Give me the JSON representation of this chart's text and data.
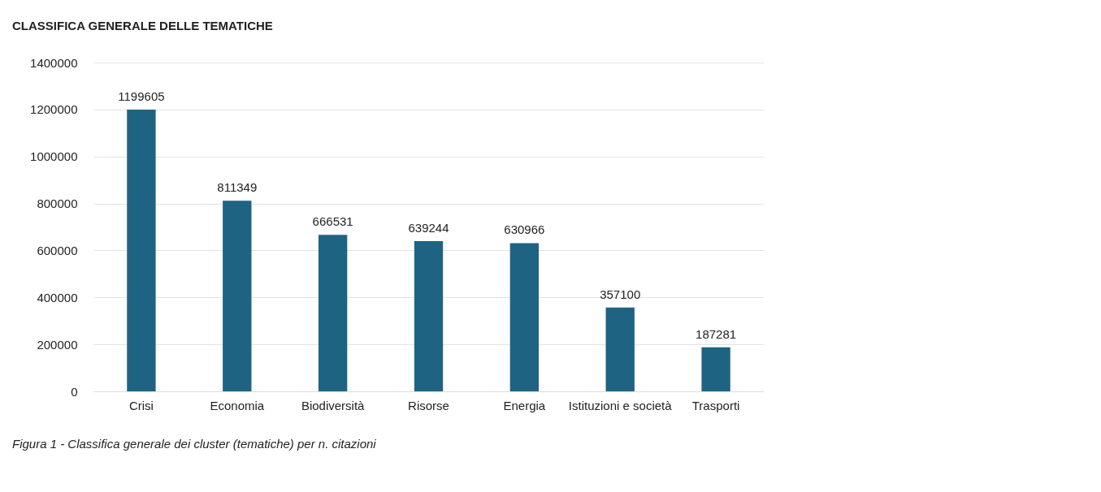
{
  "chart_data": {
    "type": "bar",
    "title": "CLASSIFICA GENERALE DELLE TEMATICHE",
    "categories": [
      "Crisi",
      "Economia",
      "Biodiversità",
      "Risorse",
      "Energia",
      "Istituzioni e società",
      "Trasporti"
    ],
    "values": [
      1199605,
      811349,
      666531,
      639244,
      630966,
      357100,
      187281
    ],
    "color": "#1f6383",
    "ylim": [
      0,
      1400000
    ],
    "yticks": [
      0,
      200000,
      400000,
      600000,
      800000,
      1000000,
      1200000,
      1400000
    ],
    "grid": "y",
    "data_labels": true,
    "annotations": [
      "Figura 1 - Classifica generale dei cluster (tematiche) per n. citazioni"
    ]
  }
}
